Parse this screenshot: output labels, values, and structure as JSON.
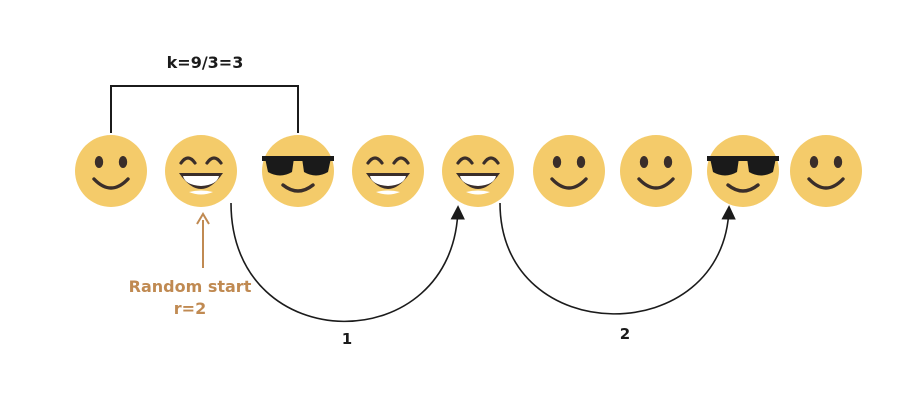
{
  "diagram": {
    "interval_label": "k=9/3=3",
    "start_label_line1": "Random start",
    "start_label_line2": "r=2",
    "step_labels": [
      "1",
      "2"
    ],
    "faces": [
      {
        "position": 1,
        "kind": "smile"
      },
      {
        "position": 2,
        "kind": "grin"
      },
      {
        "position": 3,
        "kind": "sunglasses"
      },
      {
        "position": 4,
        "kind": "grin"
      },
      {
        "position": 5,
        "kind": "grin"
      },
      {
        "position": 6,
        "kind": "smile"
      },
      {
        "position": 7,
        "kind": "smile"
      },
      {
        "position": 8,
        "kind": "sunglasses"
      },
      {
        "position": 9,
        "kind": "smile"
      }
    ],
    "colors": {
      "face": "#F4CB6A",
      "feature": "#3A2E2A",
      "line": "#1b1b1b",
      "start_accent": "#C08A52"
    }
  }
}
